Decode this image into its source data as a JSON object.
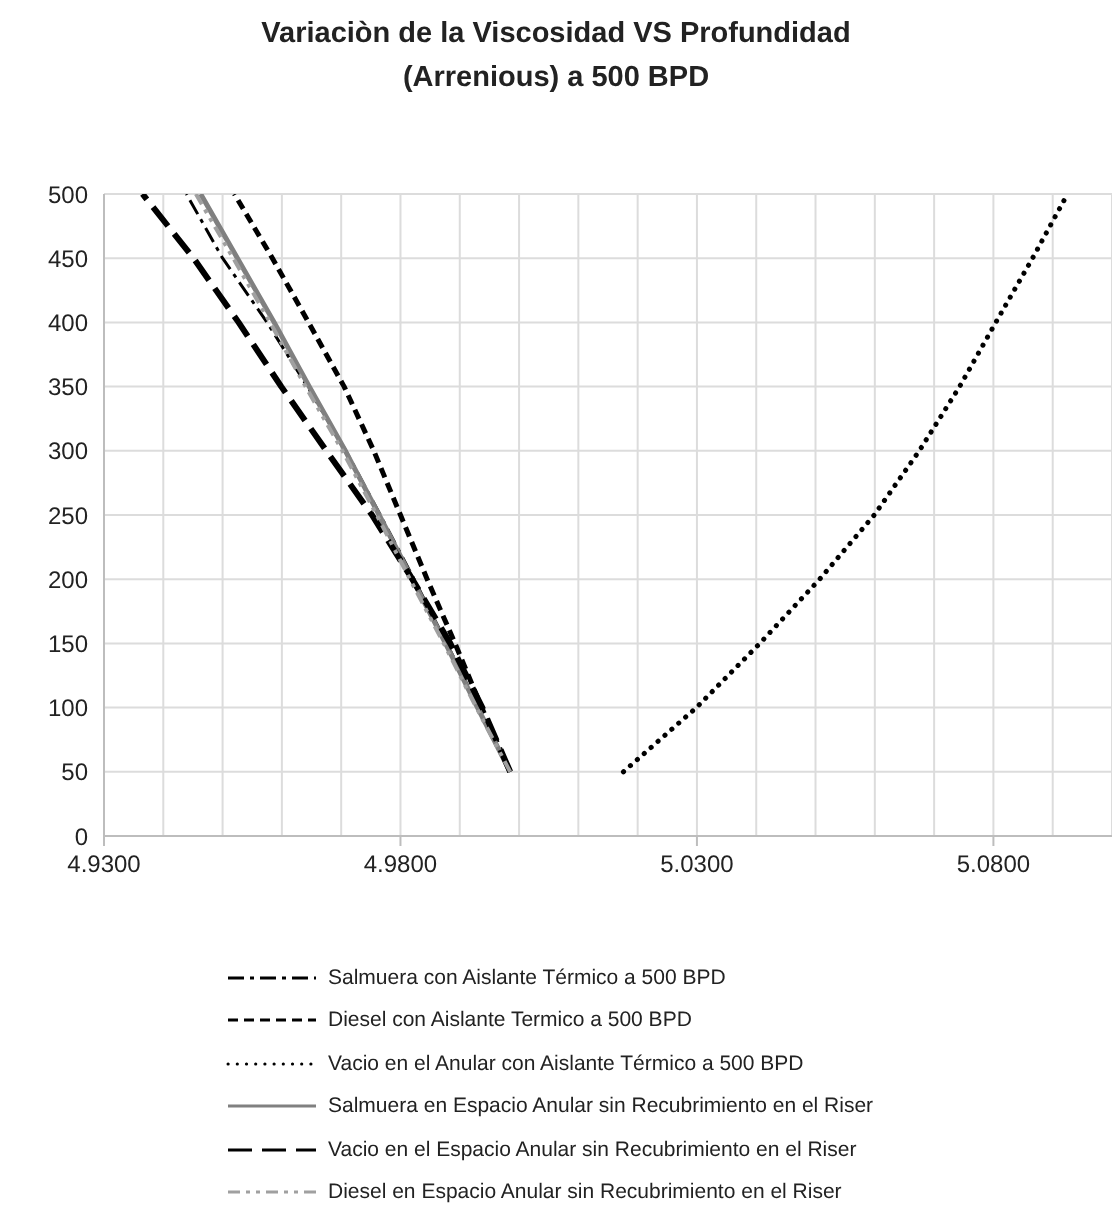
{
  "chart_data": {
    "type": "line",
    "title": "Variaciòn de la Viscosidad VS Profundidad (Arrenious) a 500 BPD",
    "xlim": [
      4.93,
      5.1
    ],
    "xticks": [
      {
        "value": 4.93,
        "label": "4.9300"
      },
      {
        "value": 4.94,
        "label": null
      },
      {
        "value": 4.95,
        "label": null
      },
      {
        "value": 4.96,
        "label": null
      },
      {
        "value": 4.97,
        "label": null
      },
      {
        "value": 4.98,
        "label": "4.9800"
      },
      {
        "value": 4.99,
        "label": null
      },
      {
        "value": 5.0,
        "label": null
      },
      {
        "value": 5.01,
        "label": null
      },
      {
        "value": 5.02,
        "label": null
      },
      {
        "value": 5.03,
        "label": "5.0300"
      },
      {
        "value": 5.04,
        "label": null
      },
      {
        "value": 5.05,
        "label": null
      },
      {
        "value": 5.06,
        "label": null
      },
      {
        "value": 5.07,
        "label": null
      },
      {
        "value": 5.08,
        "label": "5.0800"
      },
      {
        "value": 5.09,
        "label": null
      },
      {
        "value": 5.1,
        "label": null
      }
    ],
    "ylim": [
      0,
      500
    ],
    "yticks": [
      0,
      50,
      100,
      150,
      200,
      250,
      300,
      350,
      400,
      450,
      500
    ],
    "grid": true,
    "legend": "bottom",
    "marker": "none",
    "series": [
      {
        "name": "Salmuera con Aislante Térmico a 500 BPD",
        "color": "#000000",
        "line_style": "dashed",
        "x": [
          4.9985,
          4.9932,
          4.9878,
          4.9823,
          4.9766,
          4.9708,
          4.9643,
          4.9575,
          4.95,
          4.9439
        ],
        "values": [
          50,
          100,
          150,
          200,
          250,
          300,
          350,
          400,
          450,
          500
        ]
      },
      {
        "name": "Diesel con Aislante Termico a 500 BPD",
        "color": "#000000",
        "line_style": "dashed",
        "x": [
          4.9985,
          4.9937,
          4.9892,
          4.9845,
          4.98,
          4.9755,
          4.9705,
          4.9645,
          4.9584,
          4.952
        ],
        "values": [
          50,
          100,
          150,
          200,
          250,
          300,
          350,
          400,
          450,
          500
        ]
      },
      {
        "name": "Vacio en el Anular con Aislante Térmico a 500 BPD",
        "color": "#000000",
        "line_style": "dotted",
        "x": [
          5.0176,
          5.0299,
          5.0406,
          5.0507,
          5.0599,
          5.0675,
          5.0743,
          5.0804,
          5.0866,
          5.0925
        ],
        "values": [
          50,
          100,
          150,
          200,
          250,
          300,
          350,
          400,
          450,
          500
        ]
      },
      {
        "name": "Salmuera en Espacio Anular sin Recubrimiento en el Riser",
        "color": "#808080",
        "line_style": "solid",
        "x": [
          4.9985,
          4.993,
          4.9876,
          4.982,
          4.9764,
          4.9707,
          4.9646,
          4.9587,
          4.9525,
          4.9463
        ],
        "values": [
          50,
          100,
          150,
          200,
          250,
          300,
          350,
          400,
          450,
          500
        ]
      },
      {
        "name": "Vacio en el Espacio Anular sin Recubrimiento en el Riser",
        "color": "#000000",
        "line_style": "dashed",
        "x": [
          4.9985,
          4.9938,
          4.9884,
          4.982,
          4.9752,
          4.9675,
          4.9599,
          4.9527,
          4.9451,
          4.9365
        ],
        "values": [
          50,
          100,
          150,
          200,
          250,
          300,
          350,
          400,
          450,
          500
        ]
      },
      {
        "name": "Diesel en Espacio Anular sin Recubrimiento en el Riser",
        "color": "#a0a0a0",
        "line_style": "dashed",
        "x": [
          4.9985,
          4.9928,
          4.9873,
          4.9816,
          4.976,
          4.9702,
          4.964,
          4.958,
          4.9518,
          4.9455
        ],
        "values": [
          50,
          100,
          150,
          200,
          250,
          300,
          350,
          400,
          450,
          500
        ]
      }
    ]
  }
}
